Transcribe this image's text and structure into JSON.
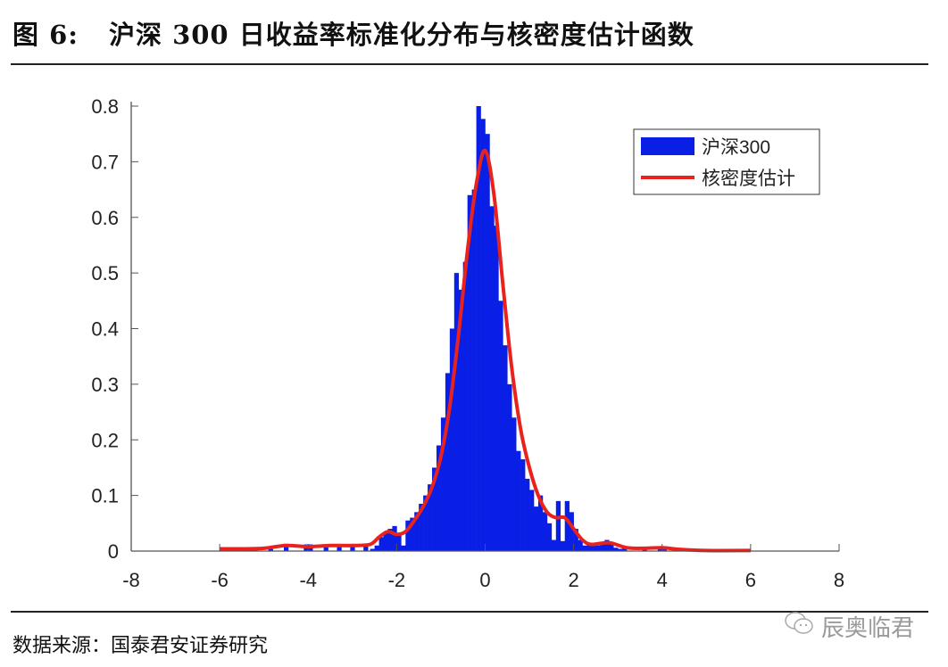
{
  "figure": {
    "label": "图 6:",
    "title": "沪深 300 日收益率标准化分布与核密度估计函数",
    "source": "数据来源：国泰君安证券研究",
    "watermark": "辰奥临君",
    "watermark_icon": "wechat-icon"
  },
  "chart_data": {
    "type": "bar",
    "title": "",
    "xlabel": "",
    "ylabel": "",
    "xlim": [
      -8,
      8
    ],
    "ylim": [
      0,
      0.8
    ],
    "xticks": [
      -8,
      -6,
      -4,
      -2,
      0,
      2,
      4,
      6,
      8
    ],
    "yticks": [
      0,
      0.1,
      0.2,
      0.3,
      0.4,
      0.5,
      0.6,
      0.7,
      0.8
    ],
    "xtick_labels": [
      "-8",
      "-6",
      "-4",
      "-2",
      "0",
      "2",
      "4",
      "6",
      "8"
    ],
    "ytick_labels": [
      "0",
      "0.1",
      "0.2",
      "0.3",
      "0.4",
      "0.5",
      "0.6",
      "0.7",
      "0.8"
    ],
    "grid": false,
    "legend_position": "top-right",
    "colors": {
      "histogram": "#0a1fe6",
      "kde": "#e8231e"
    },
    "series": [
      {
        "name": "沪深300",
        "type": "histogram",
        "bin_width": 0.1,
        "bin_centers": [
          -5.95,
          -5.85,
          -5.3,
          -5.2,
          -4.85,
          -4.5,
          -4.05,
          -3.95,
          -3.6,
          -3.3,
          -3.0,
          -2.7,
          -2.55,
          -2.45,
          -2.35,
          -2.25,
          -2.15,
          -2.05,
          -1.95,
          -1.85,
          -1.75,
          -1.65,
          -1.55,
          -1.45,
          -1.35,
          -1.25,
          -1.15,
          -1.05,
          -0.95,
          -0.85,
          -0.75,
          -0.65,
          -0.55,
          -0.45,
          -0.35,
          -0.25,
          -0.15,
          -0.05,
          0.05,
          0.15,
          0.25,
          0.35,
          0.45,
          0.55,
          0.65,
          0.75,
          0.85,
          0.95,
          1.05,
          1.15,
          1.25,
          1.35,
          1.45,
          1.55,
          1.65,
          1.75,
          1.85,
          1.95,
          2.05,
          2.15,
          2.25,
          2.35,
          2.45,
          2.55,
          2.65,
          2.75,
          2.85,
          2.95,
          3.05,
          3.15,
          3.6,
          3.95,
          4.05
        ],
        "values": [
          0.006,
          0.006,
          0.004,
          0.006,
          0.005,
          0.013,
          0.012,
          0.012,
          0.01,
          0.01,
          0.01,
          0.012,
          0.004,
          0.01,
          0.025,
          0.035,
          0.04,
          0.045,
          0.03,
          0.01,
          0.055,
          0.06,
          0.07,
          0.085,
          0.1,
          0.12,
          0.15,
          0.19,
          0.24,
          0.32,
          0.4,
          0.5,
          0.47,
          0.52,
          0.64,
          0.65,
          0.8,
          0.777,
          0.75,
          0.62,
          0.585,
          0.45,
          0.37,
          0.3,
          0.24,
          0.18,
          0.165,
          0.13,
          0.11,
          0.08,
          0.1,
          0.07,
          0.05,
          0.02,
          0.09,
          0.018,
          0.09,
          0.07,
          0.04,
          0.02,
          0.01,
          0.012,
          0.012,
          0.01,
          0.012,
          0.02,
          0.012,
          0.006,
          0.004,
          0.006,
          0.005,
          0.008,
          0.006
        ]
      },
      {
        "name": "核密度估计",
        "type": "line",
        "x": [
          -6,
          -5.5,
          -5,
          -4.5,
          -4,
          -3.5,
          -3,
          -2.6,
          -2.4,
          -2.2,
          -2,
          -1.8,
          -1.6,
          -1.4,
          -1.2,
          -1,
          -0.8,
          -0.6,
          -0.4,
          -0.2,
          0,
          0.2,
          0.4,
          0.6,
          0.8,
          1,
          1.2,
          1.4,
          1.6,
          1.8,
          2,
          2.2,
          2.4,
          2.8,
          3.2,
          3.6,
          4,
          4.4,
          5,
          6
        ],
        "y": [
          0.004,
          0.004,
          0.005,
          0.01,
          0.008,
          0.01,
          0.01,
          0.012,
          0.025,
          0.035,
          0.03,
          0.035,
          0.055,
          0.08,
          0.115,
          0.17,
          0.26,
          0.39,
          0.54,
          0.66,
          0.72,
          0.64,
          0.48,
          0.33,
          0.22,
          0.15,
          0.1,
          0.07,
          0.06,
          0.06,
          0.04,
          0.02,
          0.012,
          0.015,
          0.006,
          0.005,
          0.006,
          0.003,
          0.001,
          0.001
        ]
      }
    ]
  }
}
